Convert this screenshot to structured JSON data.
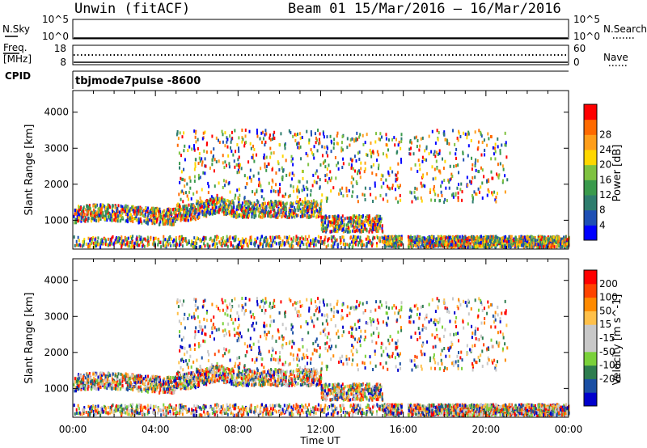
{
  "header": {
    "station": "Unwin (fitACF)",
    "beam_date": "Beam 01  15/Mar/2016 – 16/Mar/2016"
  },
  "summary": {
    "nsky_label": "N.Sky",
    "nsearch_label": "N.Search",
    "freq_label_1": "Freq.",
    "freq_label_2": "[MHz]",
    "nave_label": "Nave",
    "cpid_label": "CPID",
    "cpid_value": "tbjmode7pulse -8600",
    "noise_ticks_left": [
      "10^5",
      "10^0"
    ],
    "noise_ticks_right": [
      "10^5",
      "10^0"
    ],
    "freq_ticks": [
      "18",
      "8"
    ],
    "nave_ticks": [
      "60",
      "0"
    ]
  },
  "colors": {
    "power_scale": [
      "#0000ff",
      "#1e4fb4",
      "#2e7d6e",
      "#3a9a4c",
      "#7fc241",
      "#ffd700",
      "#ff9e1a",
      "#ff6a00",
      "#ff0000"
    ],
    "velocity_scale": [
      "#0000cc",
      "#1a4fa3",
      "#2e7d4f",
      "#7ad13a",
      "#c8c8c8",
      "#c8c8c8",
      "#ffc04a",
      "#ff8a00",
      "#ff4400",
      "#ff0000"
    ]
  },
  "chart_data": [
    {
      "type": "heatmap",
      "panel": "power",
      "ylabel": "Slant Range [km]",
      "xlabel": "Time UT",
      "x_ticks": [
        "00:00",
        "04:00",
        "08:00",
        "12:00",
        "16:00",
        "20:00",
        "00:00"
      ],
      "y_ticks": [
        1000,
        2000,
        3000,
        4000
      ],
      "ylim": [
        200,
        4600
      ],
      "xlim_hours": [
        0,
        24
      ],
      "colorbar": {
        "label": "Power [dB]",
        "ticks": [
          4,
          8,
          12,
          16,
          20,
          24,
          28
        ]
      }
    },
    {
      "type": "heatmap",
      "panel": "velocity",
      "ylabel": "Slant Range [km]",
      "xlabel": "Time UT",
      "x_ticks": [
        "00:00",
        "04:00",
        "08:00",
        "12:00",
        "16:00",
        "20:00",
        "00:00"
      ],
      "y_ticks": [
        1000,
        2000,
        3000,
        4000
      ],
      "ylim": [
        200,
        4600
      ],
      "xlim_hours": [
        0,
        24
      ],
      "colorbar": {
        "label": "Velocity [m s^-1]",
        "ticks": [
          200,
          100,
          50,
          15,
          -15,
          -50,
          -100,
          -200
        ]
      }
    }
  ]
}
